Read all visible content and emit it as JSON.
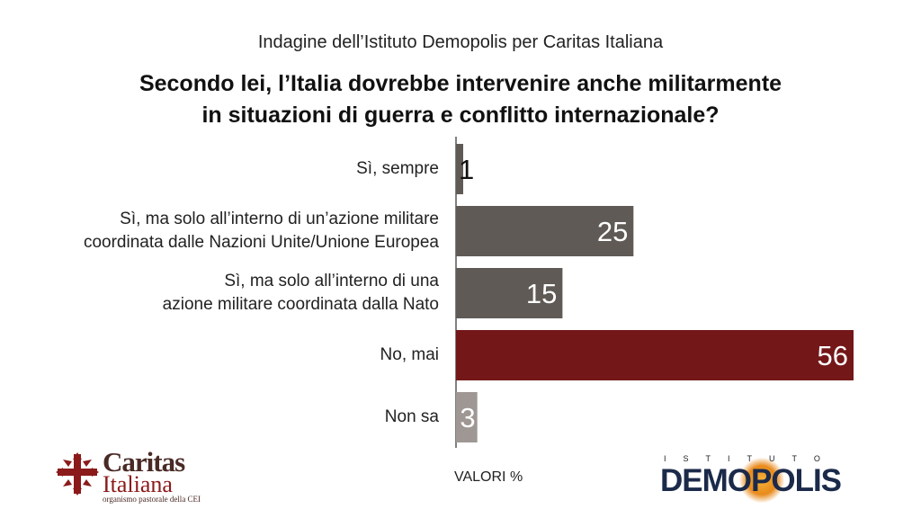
{
  "header": {
    "subtitle": "Indagine dell’Istituto Demopolis per Caritas Italiana",
    "title_line1": "Secondo lei, l’Italia dovrebbe intervenire anche militarmente",
    "title_line2": "in situazioni di guerra e conflitto internazionale?"
  },
  "chart_data": {
    "type": "bar",
    "orientation": "horizontal",
    "categories": [
      [
        "Sì, sempre"
      ],
      [
        "Sì, ma solo all’interno di un’azione militare",
        "coordinata dalle Nazioni Unite/Unione Europea"
      ],
      [
        "Sì, ma solo all’interno di una",
        "azione militare coordinata dalla Nato"
      ],
      [
        "No, mai"
      ],
      [
        "Non sa"
      ]
    ],
    "values": [
      1,
      25,
      15,
      56,
      3
    ],
    "value_labels": [
      "1",
      "25",
      "15",
      "56",
      "3"
    ],
    "colors": [
      "#5f5a55",
      "#5f5a55",
      "#5f5a55",
      "#731719",
      "#9e9794"
    ],
    "unit_note": "VALORI %",
    "xlim": [
      0,
      56
    ],
    "grid": false,
    "legend": "none"
  },
  "logos": {
    "caritas": {
      "name": "Caritas",
      "sub": "Italiana",
      "tag": "organismo pastorale della CEI",
      "color": "#8b1a1a"
    },
    "demopolis": {
      "top": "ISTITUTO",
      "word": "DEMOPOLIS",
      "color": "#1b2a4a"
    }
  }
}
